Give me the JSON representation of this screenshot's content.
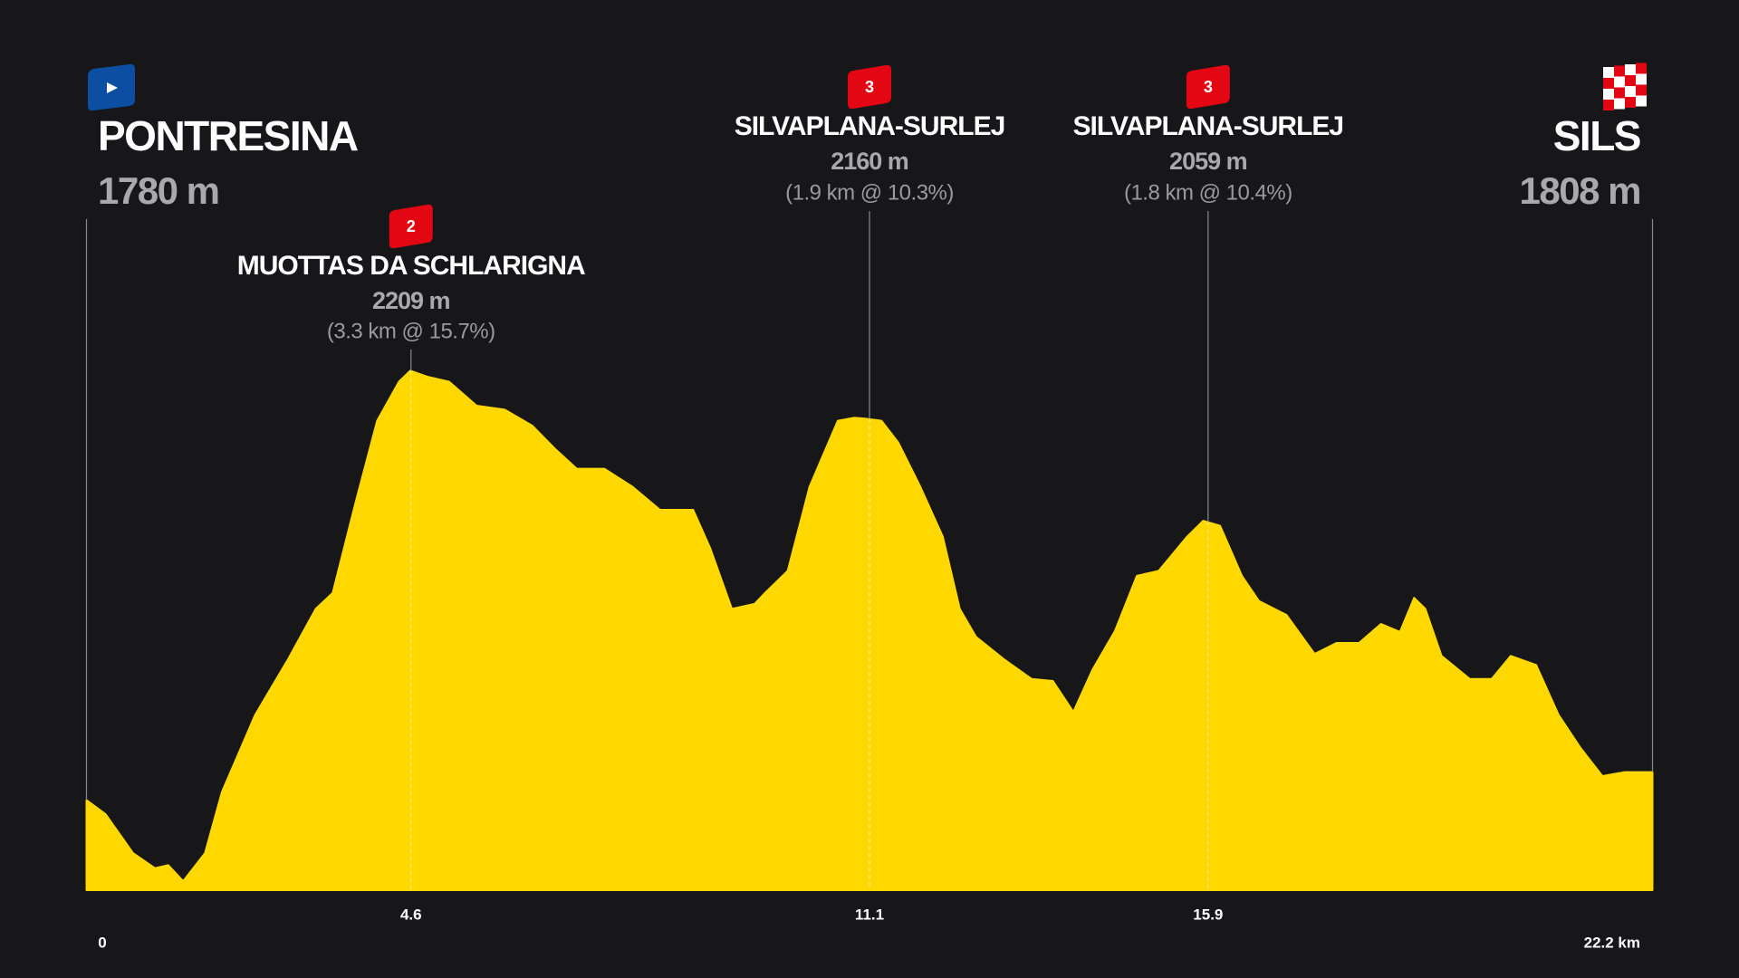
{
  "chart_data": {
    "type": "area",
    "color": "#ffd800",
    "x": [
      0,
      0.27,
      0.66,
      0.97,
      1.16,
      1.37,
      1.68,
      1.92,
      2.39,
      2.86,
      3.25,
      3.49,
      3.81,
      4.12,
      4.43,
      4.59,
      4.83,
      5.14,
      5.53,
      5.93,
      6.32,
      6.64,
      6.95,
      7.34,
      7.74,
      8.13,
      8.6,
      8.84,
      9.15,
      9.47,
      9.62,
      9.94,
      10.25,
      10.65,
      10.88,
      11.05,
      11.27,
      11.51,
      11.82,
      12.14,
      12.38,
      12.61,
      13.0,
      13.4,
      13.7,
      13.99,
      14.26,
      14.58,
      14.89,
      15.2,
      15.6,
      15.83,
      16.07,
      16.38,
      16.62,
      17.01,
      17.41,
      17.72,
      18.04,
      18.35,
      18.62,
      18.82,
      18.98,
      19.21,
      19.61,
      19.92,
      20.19,
      20.55,
      20.87,
      21.18,
      21.49,
      21.81,
      22.2
    ],
    "values": [
      1780,
      1766,
      1727,
      1712,
      1715,
      1699,
      1727,
      1788,
      1865,
      1921,
      1971,
      1987,
      2076,
      2159,
      2198,
      2209,
      2203,
      2198,
      2174,
      2170,
      2154,
      2131,
      2111,
      2111,
      2093,
      2070,
      2070,
      2032,
      1971,
      1976,
      1987,
      2009,
      2093,
      2159,
      2162,
      2161,
      2159,
      2137,
      2093,
      2043,
      1971,
      1943,
      1921,
      1901,
      1899,
      1868,
      1910,
      1949,
      2004,
      2009,
      2043,
      2059,
      2054,
      2004,
      1979,
      1965,
      1926,
      1937,
      1937,
      1956,
      1948,
      1982,
      1971,
      1924,
      1901,
      1901,
      1924,
      1915,
      1865,
      1832,
      1804,
      1808,
      1808
    ],
    "xlim": [
      0,
      22.2
    ],
    "ylim": [
      1690,
      2250
    ],
    "xticks": [
      0,
      4.6,
      11.1,
      15.9,
      {
        "value": 22.2,
        "label": "22.2 km"
      }
    ],
    "start": {
      "name": "PONTRESINA",
      "altitude": "1780 m"
    },
    "finish": {
      "name": "SILS",
      "altitude": "1808 m"
    },
    "climbs": [
      {
        "category": "2",
        "name": "MUOTTAS DA SCHLARIGNA",
        "altitude": "2209 m",
        "detail": "(3.3 km @ 15.7%)"
      },
      {
        "category": "3",
        "name": "SILVAPLANA-SURLEJ",
        "altitude": "2160 m",
        "detail": "(1.9 km @ 10.3%)"
      },
      {
        "category": "3",
        "name": "SILVAPLANA-SURLEJ",
        "altitude": "2059 m",
        "detail": "(1.8 km @ 10.4%)"
      }
    ]
  }
}
